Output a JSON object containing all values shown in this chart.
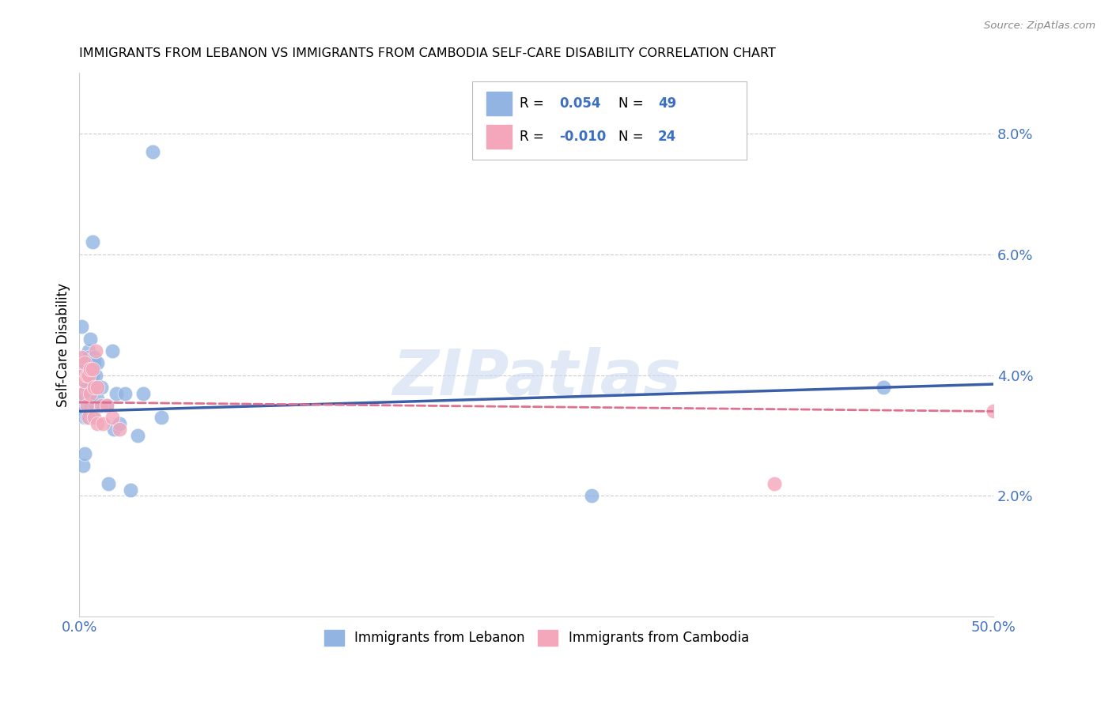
{
  "title": "IMMIGRANTS FROM LEBANON VS IMMIGRANTS FROM CAMBODIA SELF-CARE DISABILITY CORRELATION CHART",
  "source": "Source: ZipAtlas.com",
  "ylabel": "Self-Care Disability",
  "xlim": [
    0.0,
    0.5
  ],
  "ylim": [
    0.0,
    0.09
  ],
  "yticks": [
    0.0,
    0.02,
    0.04,
    0.06,
    0.08
  ],
  "ytick_labels": [
    "",
    "2.0%",
    "4.0%",
    "6.0%",
    "8.0%"
  ],
  "xticks": [
    0.0,
    0.1,
    0.2,
    0.3,
    0.4,
    0.5
  ],
  "xtick_labels": [
    "0.0%",
    "",
    "",
    "",
    "",
    "50.0%"
  ],
  "lebanon_R": 0.054,
  "lebanon_N": 49,
  "cambodia_R": -0.01,
  "cambodia_N": 24,
  "lebanon_color": "#92b4e3",
  "cambodia_color": "#f4a7bb",
  "lebanon_line_color": "#3a5fa8",
  "cambodia_line_color": "#e07090",
  "watermark_text": "ZIPatlas",
  "legend_box_color": "#cccccc",
  "lebanon_x": [
    0.001,
    0.001,
    0.002,
    0.002,
    0.002,
    0.003,
    0.003,
    0.003,
    0.003,
    0.003,
    0.003,
    0.003,
    0.004,
    0.004,
    0.004,
    0.004,
    0.005,
    0.005,
    0.005,
    0.005,
    0.006,
    0.006,
    0.006,
    0.007,
    0.007,
    0.007,
    0.008,
    0.008,
    0.008,
    0.009,
    0.009,
    0.01,
    0.01,
    0.012,
    0.013,
    0.015,
    0.016,
    0.018,
    0.019,
    0.02,
    0.022,
    0.025,
    0.028,
    0.032,
    0.035,
    0.04,
    0.045,
    0.28,
    0.44
  ],
  "lebanon_y": [
    0.036,
    0.048,
    0.037,
    0.035,
    0.025,
    0.043,
    0.041,
    0.039,
    0.036,
    0.034,
    0.033,
    0.027,
    0.043,
    0.039,
    0.038,
    0.033,
    0.044,
    0.043,
    0.037,
    0.033,
    0.046,
    0.04,
    0.035,
    0.062,
    0.04,
    0.033,
    0.043,
    0.042,
    0.035,
    0.04,
    0.035,
    0.042,
    0.036,
    0.038,
    0.035,
    0.035,
    0.022,
    0.044,
    0.031,
    0.037,
    0.032,
    0.037,
    0.021,
    0.03,
    0.037,
    0.077,
    0.033,
    0.02,
    0.038
  ],
  "cambodia_x": [
    0.001,
    0.002,
    0.002,
    0.003,
    0.003,
    0.004,
    0.004,
    0.005,
    0.005,
    0.006,
    0.006,
    0.007,
    0.008,
    0.008,
    0.009,
    0.01,
    0.01,
    0.012,
    0.013,
    0.015,
    0.018,
    0.022,
    0.38,
    0.5
  ],
  "cambodia_y": [
    0.043,
    0.04,
    0.037,
    0.042,
    0.039,
    0.04,
    0.035,
    0.04,
    0.033,
    0.041,
    0.037,
    0.041,
    0.038,
    0.033,
    0.044,
    0.038,
    0.032,
    0.035,
    0.032,
    0.035,
    0.033,
    0.031,
    0.022,
    0.034
  ],
  "lebanon_trendline_x": [
    0.0,
    0.5
  ],
  "lebanon_trendline_y": [
    0.034,
    0.0385
  ],
  "cambodia_trendline_x": [
    0.0,
    0.5
  ],
  "cambodia_trendline_y": [
    0.0355,
    0.034
  ]
}
